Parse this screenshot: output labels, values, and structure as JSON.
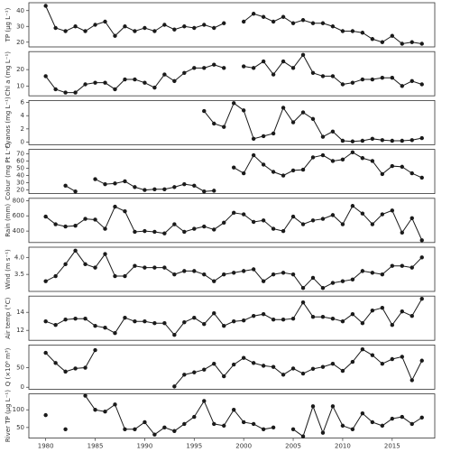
{
  "chart_data": [
    {
      "type": "line",
      "y_label": "TP (µg L⁻¹)",
      "ylim": [
        17,
        45
      ],
      "yticks": [
        20,
        30,
        40
      ],
      "x": [
        1979,
        1980,
        1981,
        1982,
        1983,
        1984,
        1985,
        1986,
        1987,
        1988,
        1989,
        1990,
        1991,
        1992,
        1993,
        1994,
        1995,
        1996,
        1997,
        1998,
        1999,
        2000,
        2001,
        2002,
        2003,
        2004,
        2005,
        2006,
        2007,
        2008,
        2009,
        2010,
        2011,
        2012,
        2013,
        2014,
        2015,
        2016,
        2017,
        2018
      ],
      "xlim": [
        1978.3,
        2019.3
      ],
      "series": [
        {
          "color": "#1a1a1a",
          "values": [
            null,
            43,
            29,
            27,
            30,
            27,
            31,
            33,
            24,
            30,
            27,
            29,
            27,
            31,
            28,
            30,
            29,
            31,
            29,
            32,
            null,
            33,
            38,
            36,
            33,
            36,
            32,
            34,
            32,
            32,
            30,
            27,
            27,
            26,
            22,
            20,
            24,
            19,
            20,
            19
          ]
        }
      ]
    },
    {
      "type": "line",
      "y_label": "Chl a (mg L⁻¹)",
      "ylim": [
        4,
        31
      ],
      "yticks": [
        10,
        20
      ],
      "x": [
        1979,
        1980,
        1981,
        1982,
        1983,
        1984,
        1985,
        1986,
        1987,
        1988,
        1989,
        1990,
        1991,
        1992,
        1993,
        1994,
        1995,
        1996,
        1997,
        1998,
        1999,
        2000,
        2001,
        2002,
        2003,
        2004,
        2005,
        2006,
        2007,
        2008,
        2009,
        2010,
        2011,
        2012,
        2013,
        2014,
        2015,
        2016,
        2017,
        2018
      ],
      "xlim": [
        1978.3,
        2019.3
      ],
      "series": [
        {
          "color": "#1a1a1a",
          "values": [
            null,
            16,
            8,
            6,
            6,
            11,
            12,
            12,
            8,
            14,
            14,
            12,
            9,
            17,
            13,
            18,
            21,
            21,
            23,
            21,
            null,
            22,
            21,
            25,
            17,
            25,
            21,
            29,
            18,
            16,
            16,
            11,
            12,
            14,
            14,
            15,
            15,
            10,
            13,
            11
          ]
        }
      ]
    },
    {
      "type": "line",
      "y_label": "Cyanos (mg L⁻¹)",
      "ylim": [
        -0.4,
        6.3
      ],
      "yticks": [
        0,
        2,
        4,
        6
      ],
      "x": [
        1979,
        1980,
        1981,
        1982,
        1983,
        1984,
        1985,
        1986,
        1987,
        1988,
        1989,
        1990,
        1991,
        1992,
        1993,
        1994,
        1995,
        1996,
        1997,
        1998,
        1999,
        2000,
        2001,
        2002,
        2003,
        2004,
        2005,
        2006,
        2007,
        2008,
        2009,
        2010,
        2011,
        2012,
        2013,
        2014,
        2015,
        2016,
        2017,
        2018
      ],
      "xlim": [
        1978.3,
        2019.3
      ],
      "series": [
        {
          "color": "#1a1a1a",
          "values": [
            null,
            null,
            null,
            null,
            null,
            null,
            null,
            null,
            null,
            null,
            null,
            null,
            null,
            null,
            null,
            null,
            null,
            4.7,
            2.8,
            2.3,
            5.9,
            4.8,
            0.5,
            0.9,
            1.3,
            5.2,
            3.0,
            4.5,
            3.5,
            0.8,
            1.6,
            0.2,
            0.1,
            0.2,
            0.5,
            0.3,
            0.2,
            0.2,
            0.3,
            0.6
          ]
        }
      ]
    },
    {
      "type": "line",
      "y_label": "Colour (mg Pt L⁻¹)",
      "ylim": [
        15,
        76
      ],
      "yticks": [
        20,
        30,
        40,
        50,
        60,
        70
      ],
      "x": [
        1979,
        1980,
        1981,
        1982,
        1983,
        1984,
        1985,
        1986,
        1987,
        1988,
        1989,
        1990,
        1991,
        1992,
        1993,
        1994,
        1995,
        1996,
        1997,
        1998,
        1999,
        2000,
        2001,
        2002,
        2003,
        2004,
        2005,
        2006,
        2007,
        2008,
        2009,
        2010,
        2011,
        2012,
        2013,
        2014,
        2015,
        2016,
        2017,
        2018
      ],
      "xlim": [
        1978.3,
        2019.3
      ],
      "series": [
        {
          "color": "#1a1a1a",
          "values": [
            null,
            null,
            null,
            26,
            18,
            null,
            35,
            28,
            29,
            32,
            24,
            20,
            21,
            21,
            24,
            28,
            26,
            18,
            19,
            null,
            51,
            43,
            68,
            55,
            45,
            40,
            47,
            48,
            65,
            68,
            60,
            62,
            72,
            64,
            60,
            42,
            53,
            52,
            43,
            37
          ]
        }
      ]
    },
    {
      "type": "line",
      "y_label": "Rain (mm)",
      "ylim": [
        250,
        830
      ],
      "yticks": [
        400,
        600,
        800
      ],
      "x": [
        1979,
        1980,
        1981,
        1982,
        1983,
        1984,
        1985,
        1986,
        1987,
        1988,
        1989,
        1990,
        1991,
        1992,
        1993,
        1994,
        1995,
        1996,
        1997,
        1998,
        1999,
        2000,
        2001,
        2002,
        2003,
        2004,
        2005,
        2006,
        2007,
        2008,
        2009,
        2010,
        2011,
        2012,
        2013,
        2014,
        2015,
        2016,
        2017,
        2018
      ],
      "xlim": [
        1978.3,
        2019.3
      ],
      "series": [
        {
          "color": "#1a1a1a",
          "values": [
            null,
            590,
            490,
            460,
            470,
            560,
            550,
            430,
            720,
            660,
            390,
            400,
            390,
            370,
            490,
            390,
            430,
            460,
            420,
            510,
            640,
            620,
            520,
            540,
            430,
            400,
            590,
            490,
            540,
            560,
            610,
            490,
            730,
            630,
            490,
            620,
            670,
            380,
            570,
            280
          ]
        }
      ]
    },
    {
      "type": "line",
      "y_label": "Wind (m s⁻¹)",
      "ylim": [
        3.0,
        4.3
      ],
      "yticks": [
        {
          "value": 3.5,
          "label": "3.5"
        },
        {
          "value": 4,
          "label": "4.0"
        }
      ],
      "x": [
        1979,
        1980,
        1981,
        1982,
        1983,
        1984,
        1985,
        1986,
        1987,
        1988,
        1989,
        1990,
        1991,
        1992,
        1993,
        1994,
        1995,
        1996,
        1997,
        1998,
        1999,
        2000,
        2001,
        2002,
        2003,
        2004,
        2005,
        2006,
        2007,
        2008,
        2009,
        2010,
        2011,
        2012,
        2013,
        2014,
        2015,
        2016,
        2017,
        2018
      ],
      "xlim": [
        1978.3,
        2019.3
      ],
      "series": [
        {
          "color": "#1a1a1a",
          "values": [
            null,
            3.3,
            3.45,
            3.8,
            4.2,
            3.8,
            3.7,
            4.1,
            3.45,
            3.45,
            3.75,
            3.7,
            3.7,
            3.7,
            3.5,
            3.6,
            3.6,
            3.5,
            3.3,
            3.5,
            3.55,
            3.6,
            3.65,
            3.3,
            3.5,
            3.55,
            3.5,
            3.1,
            3.4,
            3.1,
            3.25,
            3.3,
            3.35,
            3.6,
            3.55,
            3.5,
            3.75,
            3.75,
            3.7,
            4.0
          ]
        }
      ]
    },
    {
      "type": "line",
      "y_label": "Air temp (°C)",
      "ylim": [
        10.9,
        15.8
      ],
      "yticks": [
        12,
        14
      ],
      "x": [
        1979,
        1980,
        1981,
        1982,
        1983,
        1984,
        1985,
        1986,
        1987,
        1988,
        1989,
        1990,
        1991,
        1992,
        1993,
        1994,
        1995,
        1996,
        1997,
        1998,
        1999,
        2000,
        2001,
        2002,
        2003,
        2004,
        2005,
        2006,
        2007,
        2008,
        2009,
        2010,
        2011,
        2012,
        2013,
        2014,
        2015,
        2016,
        2017,
        2018
      ],
      "xlim": [
        1978.3,
        2019.3
      ],
      "series": [
        {
          "color": "#1a1a1a",
          "values": [
            null,
            13,
            12.6,
            13.2,
            13.3,
            13.3,
            12.5,
            12.3,
            11.7,
            13.4,
            13,
            13,
            12.8,
            12.8,
            11.5,
            12.9,
            13.4,
            12.7,
            13.9,
            12.5,
            13,
            13.1,
            13.6,
            13.8,
            13.2,
            13.2,
            13.3,
            15.1,
            13.5,
            13.5,
            13.3,
            13,
            13.8,
            12.8,
            14.2,
            14.5,
            12.6,
            14.1,
            13.6,
            15.5
          ]
        }
      ]
    },
    {
      "type": "line",
      "y_label": "Q (×10⁶ m³)",
      "ylim": [
        -5,
        108
      ],
      "yticks": [
        0,
        50
      ],
      "x": [
        1979,
        1980,
        1981,
        1982,
        1983,
        1984,
        1985,
        1986,
        1987,
        1988,
        1989,
        1990,
        1991,
        1992,
        1993,
        1994,
        1995,
        1996,
        1997,
        1998,
        1999,
        2000,
        2001,
        2002,
        2003,
        2004,
        2005,
        2006,
        2007,
        2008,
        2009,
        2010,
        2011,
        2012,
        2013,
        2014,
        2015,
        2016,
        2017,
        2018
      ],
      "xlim": [
        1978.3,
        2019.3
      ],
      "series": [
        {
          "color": "#1a1a1a",
          "values": [
            null,
            88,
            62,
            40,
            48,
            50,
            95,
            null,
            null,
            null,
            null,
            null,
            null,
            null,
            2,
            32,
            38,
            45,
            60,
            28,
            58,
            75,
            62,
            55,
            52,
            32,
            48,
            35,
            47,
            52,
            60,
            42,
            65,
            97,
            82,
            60,
            72,
            78,
            18,
            68
          ]
        }
      ]
    },
    {
      "type": "line",
      "y_label": "River TP (µg L⁻¹)",
      "ylim": [
        20,
        145
      ],
      "yticks": [
        50,
        100
      ],
      "x": [
        1979,
        1980,
        1981,
        1982,
        1983,
        1984,
        1985,
        1986,
        1987,
        1988,
        1989,
        1990,
        1991,
        1992,
        1993,
        1994,
        1995,
        1996,
        1997,
        1998,
        1999,
        2000,
        2001,
        2002,
        2003,
        2004,
        2005,
        2006,
        2007,
        2008,
        2009,
        2010,
        2011,
        2012,
        2013,
        2014,
        2015,
        2016,
        2017,
        2018
      ],
      "xlim": [
        1978.3,
        2019.3
      ],
      "xticks": [
        1980,
        1985,
        1990,
        1995,
        2000,
        2005,
        2010,
        2015
      ],
      "series": [
        {
          "color": "#1a1a1a",
          "values": [
            null,
            85,
            null,
            45,
            null,
            140,
            100,
            95,
            115,
            45,
            45,
            65,
            30,
            50,
            40,
            60,
            80,
            125,
            60,
            55,
            100,
            65,
            60,
            45,
            50,
            null,
            45,
            25,
            110,
            35,
            110,
            55,
            45,
            90,
            65,
            55,
            75,
            80,
            60,
            78
          ]
        }
      ]
    }
  ]
}
